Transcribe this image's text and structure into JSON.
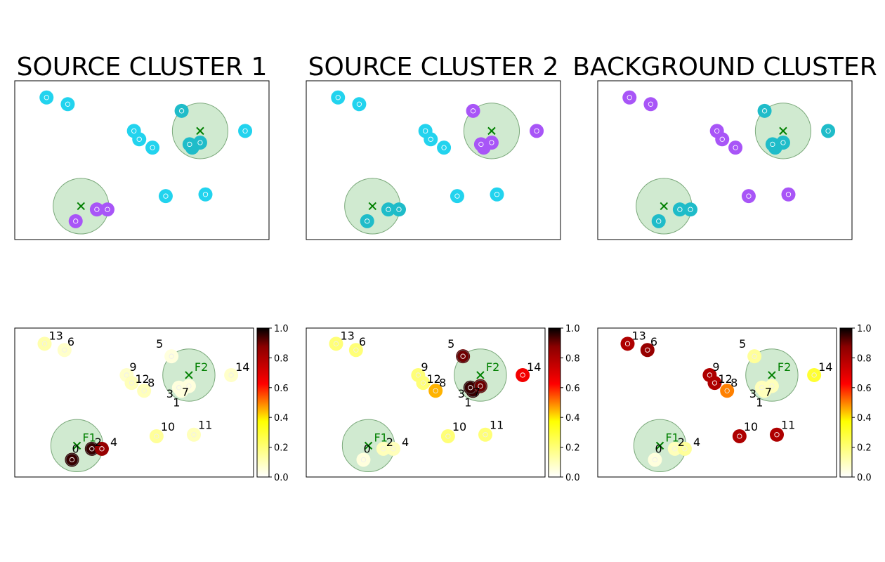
{
  "colors": {
    "source": "#22d3ee",
    "source_alt": "#a855f7",
    "near_cluster": "#1fbcc9",
    "foci_circle": "#a9d9a9",
    "foci_marker": "#008000"
  },
  "chart_data": [
    {
      "type": "scatter",
      "title": "SOURCE CLUSTER 1",
      "foci": [
        {
          "name": "F1",
          "x": 3.1,
          "y": 2.0
        },
        {
          "name": "F2",
          "x": 7.6,
          "y": 6.5
        }
      ],
      "points": [
        {
          "id": 0,
          "x": 2.9,
          "y": 1.1,
          "cluster": "source_alt"
        },
        {
          "id": 1,
          "x": 7.3,
          "y": 5.5,
          "cluster": "near_cluster"
        },
        {
          "id": 2,
          "x": 3.7,
          "y": 1.8,
          "cluster": "source_alt"
        },
        {
          "id": 3,
          "x": 7.2,
          "y": 5.7,
          "cluster": "near_cluster"
        },
        {
          "id": 4,
          "x": 4.1,
          "y": 1.8,
          "cluster": "source_alt"
        },
        {
          "id": 5,
          "x": 6.9,
          "y": 7.7,
          "cluster": "near_cluster"
        },
        {
          "id": 6,
          "x": 2.6,
          "y": 8.1,
          "cluster": "source"
        },
        {
          "id": 7,
          "x": 7.6,
          "y": 5.8,
          "cluster": "near_cluster"
        },
        {
          "id": 8,
          "x": 5.8,
          "y": 5.5,
          "cluster": "source"
        },
        {
          "id": 9,
          "x": 5.1,
          "y": 6.5,
          "cluster": "source"
        },
        {
          "id": 10,
          "x": 6.3,
          "y": 2.6,
          "cluster": "source"
        },
        {
          "id": 11,
          "x": 7.8,
          "y": 2.7,
          "cluster": "source"
        },
        {
          "id": 12,
          "x": 5.3,
          "y": 6.0,
          "cluster": "source"
        },
        {
          "id": 13,
          "x": 1.8,
          "y": 8.5,
          "cluster": "source"
        },
        {
          "id": 14,
          "x": 9.3,
          "y": 6.5,
          "cluster": "source"
        }
      ]
    },
    {
      "type": "scatter",
      "title": "SOURCE CLUSTER 2",
      "foci": [
        {
          "name": "F1",
          "x": 3.1,
          "y": 2.0
        },
        {
          "name": "F2",
          "x": 7.6,
          "y": 6.5
        }
      ],
      "points": [
        {
          "id": 0,
          "x": 2.9,
          "y": 1.1,
          "cluster": "near_cluster"
        },
        {
          "id": 1,
          "x": 7.3,
          "y": 5.5,
          "cluster": "source_alt"
        },
        {
          "id": 2,
          "x": 3.7,
          "y": 1.8,
          "cluster": "near_cluster"
        },
        {
          "id": 3,
          "x": 7.2,
          "y": 5.7,
          "cluster": "source_alt"
        },
        {
          "id": 4,
          "x": 4.1,
          "y": 1.8,
          "cluster": "near_cluster"
        },
        {
          "id": 5,
          "x": 6.9,
          "y": 7.7,
          "cluster": "source_alt"
        },
        {
          "id": 6,
          "x": 2.6,
          "y": 8.1,
          "cluster": "source"
        },
        {
          "id": 7,
          "x": 7.6,
          "y": 5.8,
          "cluster": "source_alt"
        },
        {
          "id": 8,
          "x": 5.8,
          "y": 5.5,
          "cluster": "source"
        },
        {
          "id": 9,
          "x": 5.1,
          "y": 6.5,
          "cluster": "source"
        },
        {
          "id": 10,
          "x": 6.3,
          "y": 2.6,
          "cluster": "source"
        },
        {
          "id": 11,
          "x": 7.8,
          "y": 2.7,
          "cluster": "source"
        },
        {
          "id": 12,
          "x": 5.3,
          "y": 6.0,
          "cluster": "source"
        },
        {
          "id": 13,
          "x": 1.8,
          "y": 8.5,
          "cluster": "source"
        },
        {
          "id": 14,
          "x": 9.3,
          "y": 6.5,
          "cluster": "source_alt"
        }
      ]
    },
    {
      "type": "scatter",
      "title": "BACKGROUND CLUSTER",
      "foci": [
        {
          "name": "F1",
          "x": 3.1,
          "y": 2.0
        },
        {
          "name": "F2",
          "x": 7.6,
          "y": 6.5
        }
      ],
      "points": [
        {
          "id": 0,
          "x": 2.9,
          "y": 1.1,
          "cluster": "near_cluster"
        },
        {
          "id": 1,
          "x": 7.3,
          "y": 5.5,
          "cluster": "near_cluster"
        },
        {
          "id": 2,
          "x": 3.7,
          "y": 1.8,
          "cluster": "near_cluster"
        },
        {
          "id": 3,
          "x": 7.2,
          "y": 5.7,
          "cluster": "near_cluster"
        },
        {
          "id": 4,
          "x": 4.1,
          "y": 1.8,
          "cluster": "near_cluster"
        },
        {
          "id": 5,
          "x": 6.9,
          "y": 7.7,
          "cluster": "near_cluster"
        },
        {
          "id": 6,
          "x": 2.6,
          "y": 8.1,
          "cluster": "source_alt"
        },
        {
          "id": 7,
          "x": 7.6,
          "y": 5.8,
          "cluster": "near_cluster"
        },
        {
          "id": 8,
          "x": 5.8,
          "y": 5.5,
          "cluster": "source_alt"
        },
        {
          "id": 9,
          "x": 5.1,
          "y": 6.5,
          "cluster": "source_alt"
        },
        {
          "id": 10,
          "x": 6.3,
          "y": 2.6,
          "cluster": "source_alt"
        },
        {
          "id": 11,
          "x": 7.8,
          "y": 2.7,
          "cluster": "source_alt"
        },
        {
          "id": 12,
          "x": 5.3,
          "y": 6.0,
          "cluster": "source_alt"
        },
        {
          "id": 13,
          "x": 1.8,
          "y": 8.5,
          "cluster": "source_alt"
        },
        {
          "id": 14,
          "x": 9.3,
          "y": 6.5,
          "cluster": "near_cluster"
        }
      ]
    },
    {
      "type": "scatter",
      "colorbar": {
        "min": 0.0,
        "max": 1.0,
        "ticks": [
          "0.0",
          "0.2",
          "0.4",
          "0.6",
          "0.8",
          "1.0"
        ],
        "colormap": "hot_r"
      },
      "foci": [
        {
          "name": "F1",
          "x": 3.1,
          "y": 2.0
        },
        {
          "name": "F2",
          "x": 7.6,
          "y": 6.5
        }
      ],
      "points": [
        {
          "id": 0,
          "x": 2.9,
          "y": 1.1,
          "value": 0.95
        },
        {
          "id": 1,
          "x": 7.3,
          "y": 5.5,
          "value": 0.05
        },
        {
          "id": 2,
          "x": 3.7,
          "y": 1.8,
          "value": 0.95
        },
        {
          "id": 3,
          "x": 7.2,
          "y": 5.7,
          "value": 0.05
        },
        {
          "id": 4,
          "x": 4.1,
          "y": 1.8,
          "value": 0.85
        },
        {
          "id": 5,
          "x": 6.9,
          "y": 7.7,
          "value": 0.05
        },
        {
          "id": 6,
          "x": 2.6,
          "y": 8.1,
          "value": 0.08
        },
        {
          "id": 7,
          "x": 7.6,
          "y": 5.8,
          "value": 0.05
        },
        {
          "id": 8,
          "x": 5.8,
          "y": 5.5,
          "value": 0.1
        },
        {
          "id": 9,
          "x": 5.1,
          "y": 6.5,
          "value": 0.08
        },
        {
          "id": 10,
          "x": 6.3,
          "y": 2.6,
          "value": 0.15
        },
        {
          "id": 11,
          "x": 7.8,
          "y": 2.7,
          "value": 0.1
        },
        {
          "id": 12,
          "x": 5.3,
          "y": 6.0,
          "value": 0.1
        },
        {
          "id": 13,
          "x": 1.8,
          "y": 8.5,
          "value": 0.12
        },
        {
          "id": 14,
          "x": 9.3,
          "y": 6.5,
          "value": 0.08
        }
      ]
    },
    {
      "type": "scatter",
      "colorbar": {
        "min": 0.0,
        "max": 1.0,
        "ticks": [
          "0.0",
          "0.2",
          "0.4",
          "0.6",
          "0.8",
          "1.0"
        ],
        "colormap": "hot_r"
      },
      "foci": [
        {
          "name": "F1",
          "x": 3.1,
          "y": 2.0
        },
        {
          "name": "F2",
          "x": 7.6,
          "y": 6.5
        }
      ],
      "points": [
        {
          "id": 0,
          "x": 2.9,
          "y": 1.1,
          "value": 0.05
        },
        {
          "id": 1,
          "x": 7.3,
          "y": 5.5,
          "value": 0.95
        },
        {
          "id": 2,
          "x": 3.7,
          "y": 1.8,
          "value": 0.1
        },
        {
          "id": 3,
          "x": 7.2,
          "y": 5.7,
          "value": 0.95
        },
        {
          "id": 4,
          "x": 4.1,
          "y": 1.8,
          "value": 0.1
        },
        {
          "id": 5,
          "x": 6.9,
          "y": 7.7,
          "value": 0.9
        },
        {
          "id": 6,
          "x": 2.6,
          "y": 8.1,
          "value": 0.2
        },
        {
          "id": 7,
          "x": 7.6,
          "y": 5.8,
          "value": 0.9
        },
        {
          "id": 8,
          "x": 5.8,
          "y": 5.5,
          "value": 0.45
        },
        {
          "id": 9,
          "x": 5.1,
          "y": 6.5,
          "value": 0.2
        },
        {
          "id": 10,
          "x": 6.3,
          "y": 2.6,
          "value": 0.2
        },
        {
          "id": 11,
          "x": 7.8,
          "y": 2.7,
          "value": 0.2
        },
        {
          "id": 12,
          "x": 5.3,
          "y": 6.0,
          "value": 0.2
        },
        {
          "id": 13,
          "x": 1.8,
          "y": 8.5,
          "value": 0.2
        },
        {
          "id": 14,
          "x": 9.3,
          "y": 6.5,
          "value": 0.65
        }
      ]
    },
    {
      "type": "scatter",
      "colorbar": {
        "min": 0.0,
        "max": 1.0,
        "ticks": [
          "0.0",
          "0.2",
          "0.4",
          "0.6",
          "0.8",
          "1.0"
        ],
        "colormap": "hot_r"
      },
      "foci": [
        {
          "name": "F1",
          "x": 3.1,
          "y": 2.0
        },
        {
          "name": "F2",
          "x": 7.6,
          "y": 6.5
        }
      ],
      "points": [
        {
          "id": 0,
          "x": 2.9,
          "y": 1.1,
          "value": 0.05
        },
        {
          "id": 1,
          "x": 7.3,
          "y": 5.5,
          "value": 0.1
        },
        {
          "id": 2,
          "x": 3.7,
          "y": 1.8,
          "value": 0.1
        },
        {
          "id": 3,
          "x": 7.2,
          "y": 5.7,
          "value": 0.1
        },
        {
          "id": 4,
          "x": 4.1,
          "y": 1.8,
          "value": 0.15
        },
        {
          "id": 5,
          "x": 6.9,
          "y": 7.7,
          "value": 0.15
        },
        {
          "id": 6,
          "x": 2.6,
          "y": 8.1,
          "value": 0.85
        },
        {
          "id": 7,
          "x": 7.6,
          "y": 5.8,
          "value": 0.1
        },
        {
          "id": 8,
          "x": 5.8,
          "y": 5.5,
          "value": 0.5
        },
        {
          "id": 9,
          "x": 5.1,
          "y": 6.5,
          "value": 0.8
        },
        {
          "id": 10,
          "x": 6.3,
          "y": 2.6,
          "value": 0.8
        },
        {
          "id": 11,
          "x": 7.8,
          "y": 2.7,
          "value": 0.8
        },
        {
          "id": 12,
          "x": 5.3,
          "y": 6.0,
          "value": 0.8
        },
        {
          "id": 13,
          "x": 1.8,
          "y": 8.5,
          "value": 0.8
        },
        {
          "id": 14,
          "x": 9.3,
          "y": 6.5,
          "value": 0.3
        }
      ]
    }
  ]
}
